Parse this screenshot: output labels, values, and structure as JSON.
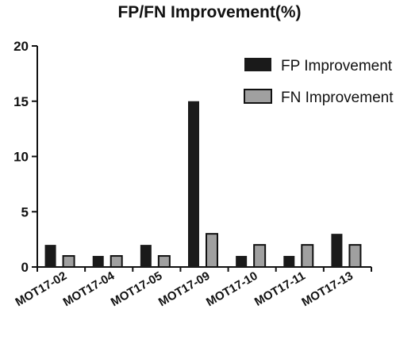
{
  "chart_data": {
    "type": "bar",
    "title": "FP/FN Improvement(%)",
    "categories": [
      "MOT17-02",
      "MOT17-04",
      "MOT17-05",
      "MOT17-09",
      "MOT17-10",
      "MOT17-11",
      "MOT17-13"
    ],
    "series": [
      {
        "name": "FP Improvement",
        "values": [
          2,
          1,
          2,
          15,
          1,
          1,
          3
        ],
        "color": "#1a1a1a"
      },
      {
        "name": "FN Improvement",
        "values": [
          1,
          1,
          1,
          3,
          2,
          2,
          2
        ],
        "color": "#a0a0a0"
      }
    ],
    "yticks": [
      0,
      5,
      10,
      15,
      20
    ],
    "ylim": [
      0,
      20
    ],
    "xlabel": "",
    "ylabel": "",
    "legend_position": "top-right",
    "grid": false
  }
}
